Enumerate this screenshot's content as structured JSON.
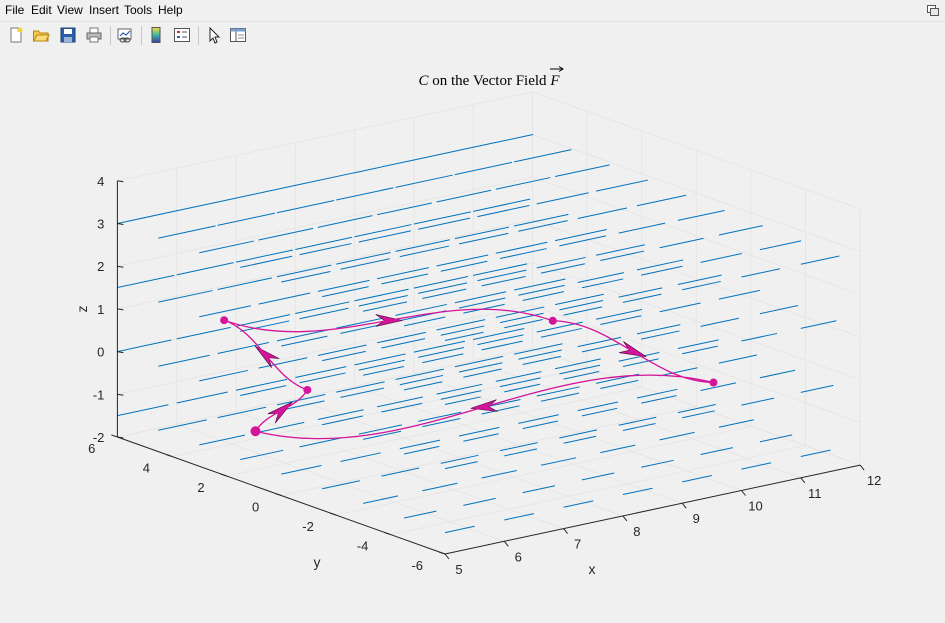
{
  "menu": {
    "items": [
      "File",
      "Edit",
      "View",
      "Insert",
      "Tools",
      "Help"
    ]
  },
  "toolbar": {
    "buttons": [
      "new-figure",
      "open-file",
      "save-figure",
      "print-figure",
      "link-plot",
      "insert-colorbar",
      "insert-legend",
      "edit-plot",
      "property-inspector"
    ]
  },
  "chart_data": {
    "type": "3d-quiver-with-curve",
    "title": {
      "italic": "C",
      "text": " on the Vector Field ",
      "vector_symbol": "F"
    },
    "xlabel": "x",
    "ylabel": "y",
    "zlabel": "z",
    "xlim": [
      5,
      12
    ],
    "ylim": [
      -6,
      6
    ],
    "zlim": [
      -2,
      4
    ],
    "x_ticks": [
      "5",
      "6",
      "7",
      "8",
      "9",
      "10",
      "11",
      "12"
    ],
    "y_ticks": [
      "-6",
      "-4",
      "-2",
      "0",
      "2",
      "4",
      "6"
    ],
    "z_ticks": [
      "-2",
      "-1",
      "0",
      "1",
      "2",
      "3",
      "4"
    ],
    "grid": true,
    "quiver": {
      "color": "#0072bd",
      "direction": "+x"
    },
    "curve": {
      "color": "#d4149b",
      "vertices": [
        [
          6.5,
          2.3,
          -0.5
        ],
        [
          6.8,
          6,
          0.2
        ],
        [
          10.5,
          2,
          0
        ],
        [
          11,
          -2.8,
          -0.5
        ],
        [
          6.5,
          4.2,
          -1.9
        ]
      ]
    }
  }
}
